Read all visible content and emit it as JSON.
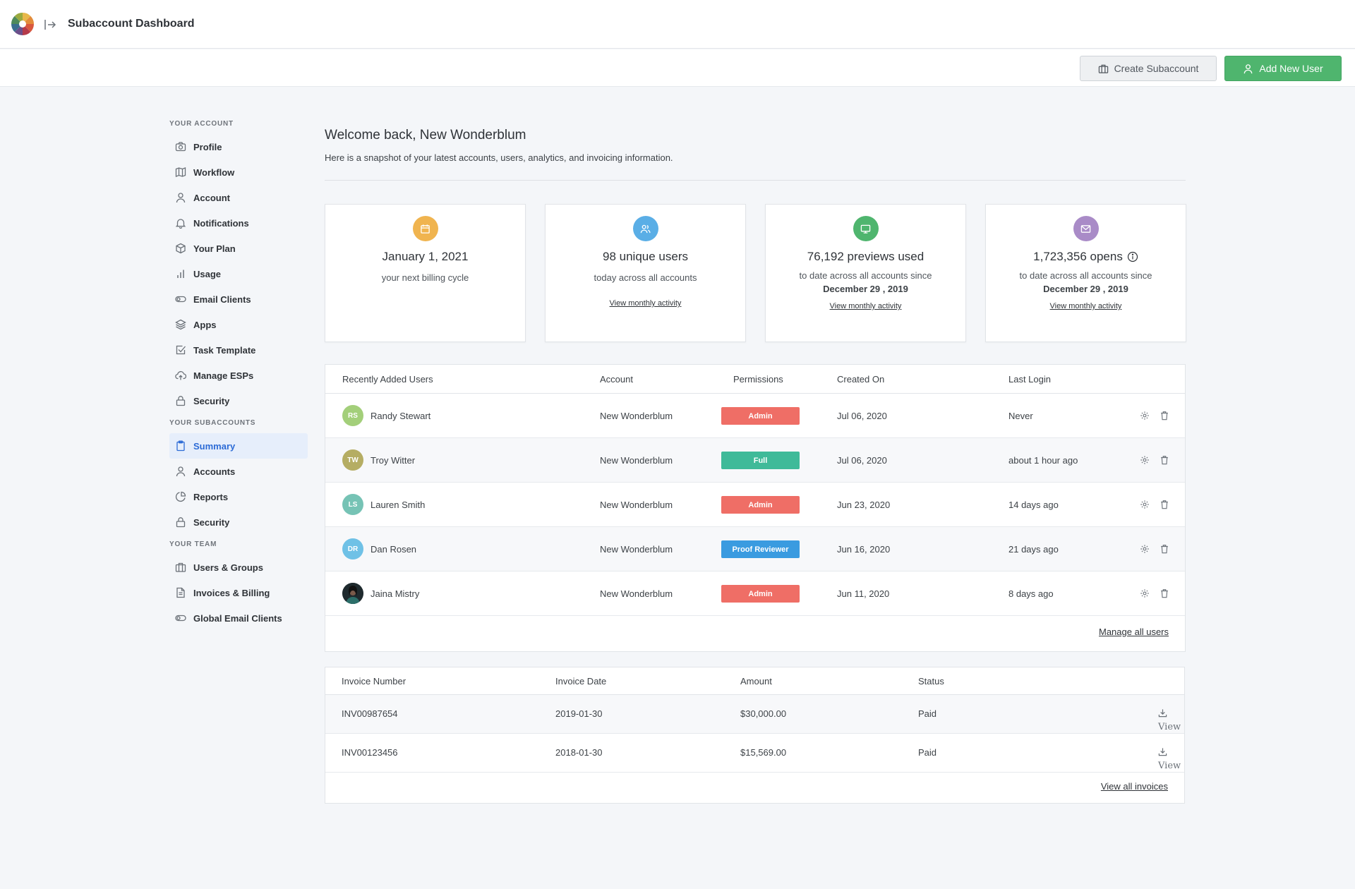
{
  "app": {
    "title": "Subaccount Dashboard"
  },
  "actions": {
    "create_subaccount": "Create Subaccount",
    "add_new_user": "Add New User"
  },
  "sidebar": {
    "sections": [
      {
        "title": "YOUR ACCOUNT",
        "items": [
          {
            "label": "Profile",
            "icon": "camera-icon"
          },
          {
            "label": "Workflow",
            "icon": "map-icon"
          },
          {
            "label": "Account",
            "icon": "user-icon"
          },
          {
            "label": "Notifications",
            "icon": "bell-icon"
          },
          {
            "label": "Your Plan",
            "icon": "box-icon"
          },
          {
            "label": "Usage",
            "icon": "bar-chart-icon"
          },
          {
            "label": "Email Clients",
            "icon": "toggle-icon"
          },
          {
            "label": "Apps",
            "icon": "layers-icon"
          },
          {
            "label": "Task Template",
            "icon": "checkbox-icon"
          },
          {
            "label": "Manage ESPs",
            "icon": "cloud-upload-icon"
          },
          {
            "label": "Security",
            "icon": "lock-icon"
          }
        ]
      },
      {
        "title": "YOUR SUBACCOUNTS",
        "items": [
          {
            "label": "Summary",
            "icon": "clipboard-icon",
            "active": true
          },
          {
            "label": "Accounts",
            "icon": "user-icon"
          },
          {
            "label": "Reports",
            "icon": "pie-chart-icon"
          },
          {
            "label": "Security",
            "icon": "lock-icon"
          }
        ]
      },
      {
        "title": "YOUR TEAM",
        "items": [
          {
            "label": "Users & Groups",
            "icon": "briefcase-icon"
          },
          {
            "label": "Invoices & Billing",
            "icon": "file-icon"
          },
          {
            "label": "Global Email Clients",
            "icon": "toggle-icon"
          }
        ]
      }
    ]
  },
  "main": {
    "welcome": "Welcome back, New Wonderblum",
    "subtitle": "Here is a snapshot of your latest accounts, users, analytics, and invoicing information.",
    "cards": [
      {
        "icon": "calendar-icon",
        "color": "#f0b44f",
        "stat": "January 1, 2021",
        "desc": "your next billing cycle"
      },
      {
        "icon": "users-icon",
        "color": "#5aaee6",
        "stat": "98 unique users",
        "desc": "today across all accounts",
        "link": "View monthly activity"
      },
      {
        "icon": "monitor-icon",
        "color": "#4fb56e",
        "stat": "76,192 previews used",
        "desc": "to date across all accounts since",
        "date": "December 29 , 2019",
        "link": "View monthly activity"
      },
      {
        "icon": "mail-icon",
        "color": "#a98bc7",
        "stat": "1,723,356 opens",
        "desc": "to date across all accounts since",
        "date": "December 29 , 2019",
        "link": "View monthly activity",
        "info_icon": "info-icon"
      }
    ],
    "users_table": {
      "headers": [
        "Recently Added Users",
        "Account",
        "Permissions",
        "Created On",
        "Last Login"
      ],
      "rows": [
        {
          "initials": "RS",
          "avatar_color": "#a3cf7a",
          "name": "Randy Stewart",
          "account": "New Wonderblum",
          "permission": "Admin",
          "perm_color": "#ef6e66",
          "created": "Jul 06, 2020",
          "last_login": "Never"
        },
        {
          "initials": "TW",
          "avatar_color": "#b5ad63",
          "name": "Troy Witter",
          "account": "New Wonderblum",
          "permission": "Full",
          "perm_color": "#3fba99",
          "created": "Jul 06, 2020",
          "last_login": "about 1 hour ago"
        },
        {
          "initials": "LS",
          "avatar_color": "#76c3b5",
          "name": "Lauren Smith",
          "account": "New Wonderblum",
          "permission": "Admin",
          "perm_color": "#ef6e66",
          "created": "Jun 23, 2020",
          "last_login": "14 days ago"
        },
        {
          "initials": "DR",
          "avatar_color": "#6fc1e6",
          "name": "Dan Rosen",
          "account": "New Wonderblum",
          "permission": "Proof Reviewer",
          "perm_color": "#3a9be0",
          "created": "Jun 16, 2020",
          "last_login": "21 days ago"
        },
        {
          "initials": "",
          "avatar_color": "#1f2a2e",
          "name": "Jaina Mistry",
          "account": "New Wonderblum",
          "permission": "Admin",
          "perm_color": "#ef6e66",
          "created": "Jun 11, 2020",
          "last_login": "8 days ago"
        }
      ],
      "footer_link": "Manage all users"
    },
    "invoices_table": {
      "headers": [
        "Invoice Number",
        "Invoice Date",
        "Amount",
        "Status"
      ],
      "rows": [
        {
          "number": "INV00987654",
          "date": "2019-01-30",
          "amount": "$30,000.00",
          "status": "Paid",
          "view": "View"
        },
        {
          "number": "INV00123456",
          "date": "2018-01-30",
          "amount": "$15,569.00",
          "status": "Paid",
          "view": "View"
        }
      ],
      "footer_link": "View all invoices"
    }
  }
}
